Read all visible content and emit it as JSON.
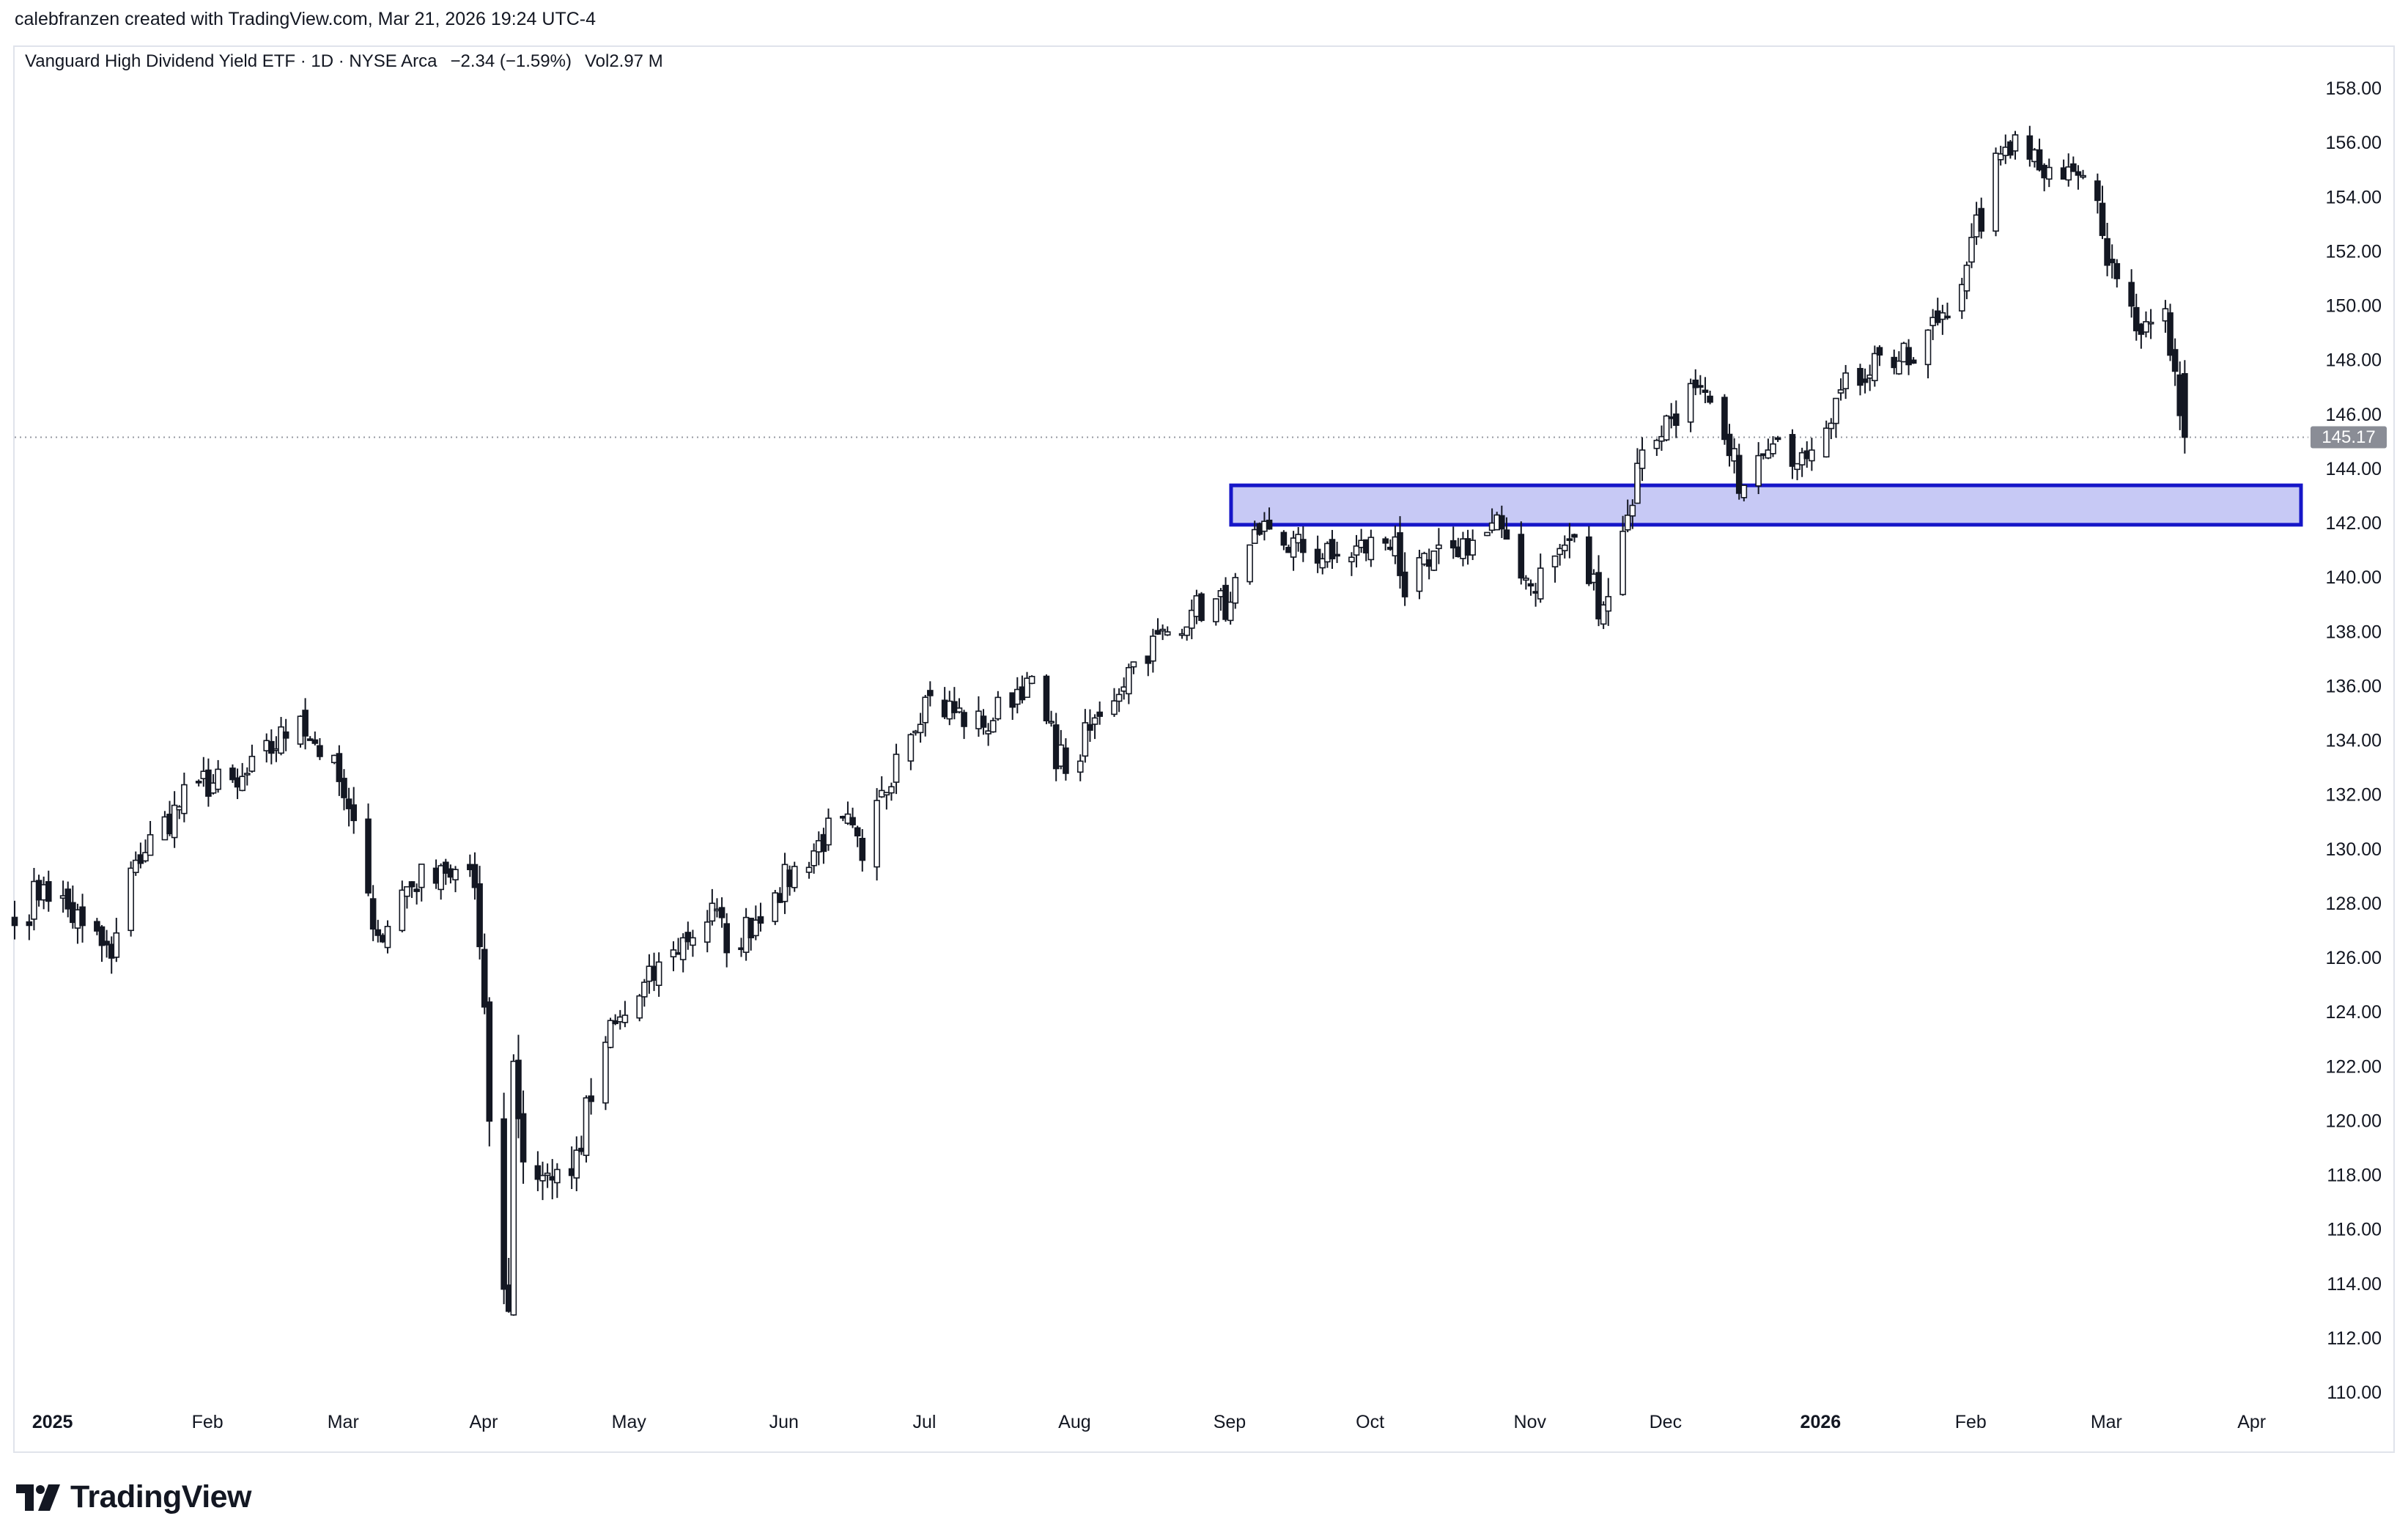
{
  "header": {
    "credit": "calebfranzen created with TradingView.com, Mar 21, 2026 19:24 UTC-4"
  },
  "legend": {
    "title": "Vanguard High Dividend Yield ETF · 1D · NYSE Arca",
    "change": "−2.34 (−1.59%)",
    "volume_label": "Vol",
    "volume": "2.97 M"
  },
  "footer": {
    "brand": "TradingView"
  },
  "colors": {
    "candle": "#131722",
    "zone_fill": "#c7c9f5",
    "zone_border": "#1616c8",
    "price_tag": "#8a8d96"
  },
  "chart_data": {
    "type": "candlestick",
    "title": "Vanguard High Dividend Yield ETF · 1D · NYSE Arca",
    "ylim": [
      109,
      159.3
    ],
    "y_ticks": [
      "110.00",
      "112.00",
      "114.00",
      "116.00",
      "118.00",
      "120.00",
      "122.00",
      "124.00",
      "126.00",
      "128.00",
      "130.00",
      "132.00",
      "134.00",
      "136.00",
      "138.00",
      "140.00",
      "142.00",
      "144.00",
      "146.00",
      "148.00",
      "150.00",
      "152.00",
      "154.00",
      "156.00",
      "158.00"
    ],
    "x_ticks": [
      {
        "label": "2025",
        "date": "2025-01-02",
        "bold": true
      },
      {
        "label": "Feb",
        "date": "2025-02-03",
        "bold": false
      },
      {
        "label": "Mar",
        "date": "2025-03-03",
        "bold": false
      },
      {
        "label": "Apr",
        "date": "2025-04-01",
        "bold": false
      },
      {
        "label": "May",
        "date": "2025-05-01",
        "bold": false
      },
      {
        "label": "Jun",
        "date": "2025-06-02",
        "bold": false
      },
      {
        "label": "Jul",
        "date": "2025-07-01",
        "bold": false
      },
      {
        "label": "Aug",
        "date": "2025-08-01",
        "bold": false
      },
      {
        "label": "Sep",
        "date": "2025-09-02",
        "bold": false
      },
      {
        "label": "Oct",
        "date": "2025-10-01",
        "bold": false
      },
      {
        "label": "Nov",
        "date": "2025-11-03",
        "bold": false
      },
      {
        "label": "Dec",
        "date": "2025-12-01",
        "bold": false
      },
      {
        "label": "2026",
        "date": "2026-01-02",
        "bold": true
      },
      {
        "label": "Feb",
        "date": "2026-02-02",
        "bold": false
      },
      {
        "label": "Mar",
        "date": "2026-03-02",
        "bold": false
      },
      {
        "label": "Apr",
        "date": "2026-04-01",
        "bold": false
      }
    ],
    "x_range": [
      "2024-12-27",
      "2026-04-13"
    ],
    "last_price": "145.17",
    "last_value": 145.17,
    "zone": {
      "from": "2025-09-02",
      "to": "2026-04-13",
      "low": 141.95,
      "high": 143.4
    },
    "anchors": [
      [
        "2024-12-27",
        127.2,
        1.2,
        0
      ],
      [
        "2025-01-02",
        128.7,
        1.1,
        0
      ],
      [
        "2025-01-10",
        127.2,
        1.2,
        0
      ],
      [
        "2025-01-16",
        126.0,
        1.2,
        0
      ],
      [
        "2025-01-21",
        129.6,
        1.0,
        0
      ],
      [
        "2025-02-03",
        132.5,
        1.0,
        0
      ],
      [
        "2025-02-11",
        132.3,
        1.0,
        0
      ],
      [
        "2025-02-24",
        134.9,
        0.9,
        0
      ],
      [
        "2025-03-04",
        132.5,
        1.2,
        0
      ],
      [
        "2025-03-10",
        128.4,
        1.3,
        0
      ],
      [
        "2025-03-13",
        126.6,
        1.2,
        0
      ],
      [
        "2025-03-17",
        128.5,
        1.0,
        0
      ],
      [
        "2025-03-25",
        129.4,
        0.9,
        0
      ],
      [
        "2025-04-01",
        128.6,
        1.0,
        0
      ],
      [
        "2025-04-03",
        124.2,
        1.5,
        0
      ],
      [
        "2025-04-04",
        120.0,
        2.0,
        0
      ],
      [
        "2025-04-08",
        113.0,
        2.2,
        0
      ],
      [
        "2025-04-09",
        122.2,
        2.4,
        0
      ],
      [
        "2025-04-11",
        118.5,
        1.8,
        0
      ],
      [
        "2025-04-21",
        118.0,
        1.6,
        0
      ],
      [
        "2025-04-28",
        122.9,
        1.2,
        0
      ],
      [
        "2025-05-12",
        126.3,
        1.0,
        0
      ],
      [
        "2025-05-21",
        127.8,
        1.0,
        0
      ],
      [
        "2025-05-23",
        126.2,
        1.0,
        0
      ],
      [
        "2025-06-02",
        128.4,
        1.0,
        0
      ],
      [
        "2025-06-16",
        131.2,
        1.0,
        0
      ],
      [
        "2025-06-20",
        129.6,
        1.0,
        0
      ],
      [
        "2025-06-27",
        133.5,
        1.0,
        0
      ],
      [
        "2025-07-03",
        135.6,
        1.0,
        0
      ],
      [
        "2025-07-15",
        134.5,
        1.0,
        0
      ],
      [
        "2025-07-24",
        136.3,
        0.9,
        0
      ],
      [
        "2025-08-01",
        132.8,
        1.2,
        0
      ],
      [
        "2025-08-08",
        134.9,
        1.0,
        0
      ],
      [
        "2025-08-15",
        136.9,
        0.9,
        0
      ],
      [
        "2025-08-27",
        138.8,
        0.9,
        0
      ],
      [
        "2025-09-04",
        139.1,
        1.0,
        0
      ],
      [
        "2025-09-10",
        141.6,
        0.9,
        0
      ],
      [
        "2025-09-25",
        140.7,
        1.0,
        0
      ],
      [
        "2025-10-08",
        141.5,
        1.0,
        0
      ],
      [
        "2025-10-10",
        139.3,
        1.6,
        0
      ],
      [
        "2025-10-20",
        141.1,
        1.0,
        0
      ],
      [
        "2025-10-30",
        141.8,
        1.0,
        0
      ],
      [
        "2025-11-05",
        139.7,
        1.0,
        0
      ],
      [
        "2025-11-13",
        141.4,
        1.3,
        0
      ],
      [
        "2025-11-20",
        139.0,
        1.4,
        0
      ],
      [
        "2025-11-25",
        142.3,
        1.2,
        0
      ],
      [
        "2025-11-28",
        144.7,
        1.0,
        0
      ],
      [
        "2025-12-09",
        147.0,
        1.0,
        0
      ],
      [
        "2025-12-16",
        144.5,
        1.0,
        0
      ],
      [
        "2025-12-19",
        143.4,
        1.1,
        0
      ],
      [
        "2025-12-24",
        144.7,
        0.8,
        0
      ],
      [
        "2025-12-31",
        144.6,
        0.9,
        0
      ],
      [
        "2026-01-07",
        146.6,
        1.0,
        0
      ],
      [
        "2026-01-16",
        148.2,
        1.0,
        0
      ],
      [
        "2026-01-23",
        147.9,
        1.0,
        0
      ],
      [
        "2026-02-03",
        151.5,
        1.1,
        0
      ],
      [
        "2026-02-10",
        155.6,
        1.1,
        0
      ],
      [
        "2026-02-13",
        156.3,
        1.0,
        0
      ],
      [
        "2026-02-20",
        155.1,
        1.0,
        0
      ],
      [
        "2026-02-27",
        154.8,
        1.0,
        0
      ],
      [
        "2026-03-03",
        152.6,
        1.2,
        0
      ],
      [
        "2026-03-09",
        150.0,
        1.2,
        0
      ],
      [
        "2026-03-13",
        149.4,
        1.1,
        0
      ],
      [
        "2026-03-16",
        149.9,
        1.0,
        0
      ],
      [
        "2026-03-18",
        147.6,
        1.1,
        0
      ],
      [
        "2026-03-20",
        145.17,
        1.3,
        -2.34
      ]
    ]
  }
}
